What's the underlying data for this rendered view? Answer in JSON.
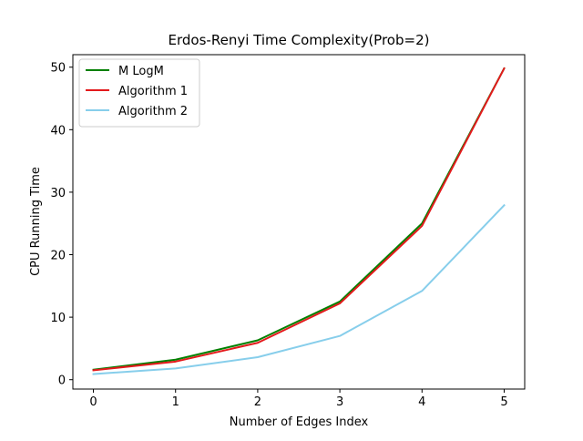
{
  "chart_data": {
    "type": "line",
    "title": "Erdos-Renyi Time Complexity(Prob=2)",
    "xlabel": "Number of Edges Index",
    "ylabel": "CPU Running Time",
    "x": [
      0,
      1,
      2,
      3,
      4,
      5
    ],
    "xlim": [
      -0.25,
      5.25
    ],
    "ylim": [
      -1.5,
      52.0
    ],
    "xticks": [
      0,
      1,
      2,
      3,
      4,
      5
    ],
    "yticks": [
      0,
      10,
      20,
      30,
      40,
      50
    ],
    "legend_position": "upper-left",
    "grid": false,
    "series": [
      {
        "name": "M LogM",
        "color": "#008000",
        "values": [
          1.6,
          3.2,
          6.3,
          12.5,
          25.0,
          49.8
        ]
      },
      {
        "name": "Algorithm 1",
        "color": "#e31a1c",
        "values": [
          1.5,
          2.9,
          5.9,
          12.2,
          24.6,
          49.8
        ]
      },
      {
        "name": "Algorithm 2",
        "color": "#87ceeb",
        "values": [
          0.9,
          1.8,
          3.6,
          7.0,
          14.2,
          27.9
        ]
      }
    ]
  }
}
